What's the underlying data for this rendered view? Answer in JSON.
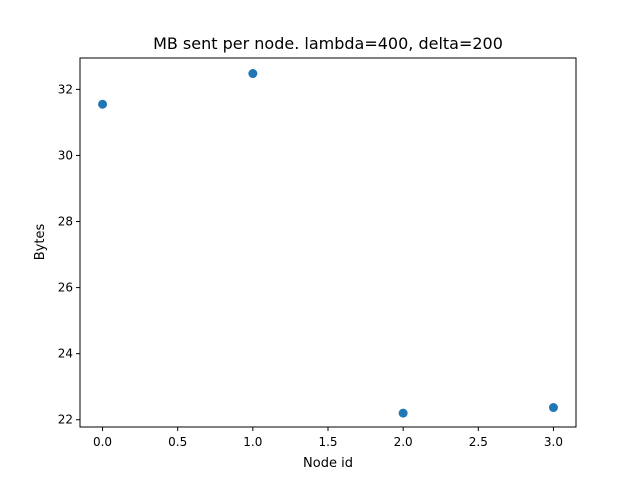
{
  "chart_data": {
    "type": "scatter",
    "title": "MB sent per node. lambda=400, delta=200",
    "xlabel": "Node id",
    "ylabel": "Bytes",
    "x": [
      0,
      1,
      2,
      3
    ],
    "y": [
      31.55,
      32.48,
      22.2,
      22.37
    ],
    "xlim": [
      -0.15,
      3.15
    ],
    "ylim": [
      21.78,
      32.95
    ],
    "xticks": [
      0.0,
      0.5,
      1.0,
      1.5,
      2.0,
      2.5,
      3.0
    ],
    "xtick_labels": [
      "0.0",
      "0.5",
      "1.0",
      "1.5",
      "2.0",
      "2.5",
      "3.0"
    ],
    "yticks": [
      22,
      24,
      26,
      28,
      30,
      32
    ],
    "ytick_labels": [
      "22",
      "24",
      "26",
      "28",
      "30",
      "32"
    ],
    "marker_color": "#1f77b4",
    "grid": false,
    "legend": false
  }
}
